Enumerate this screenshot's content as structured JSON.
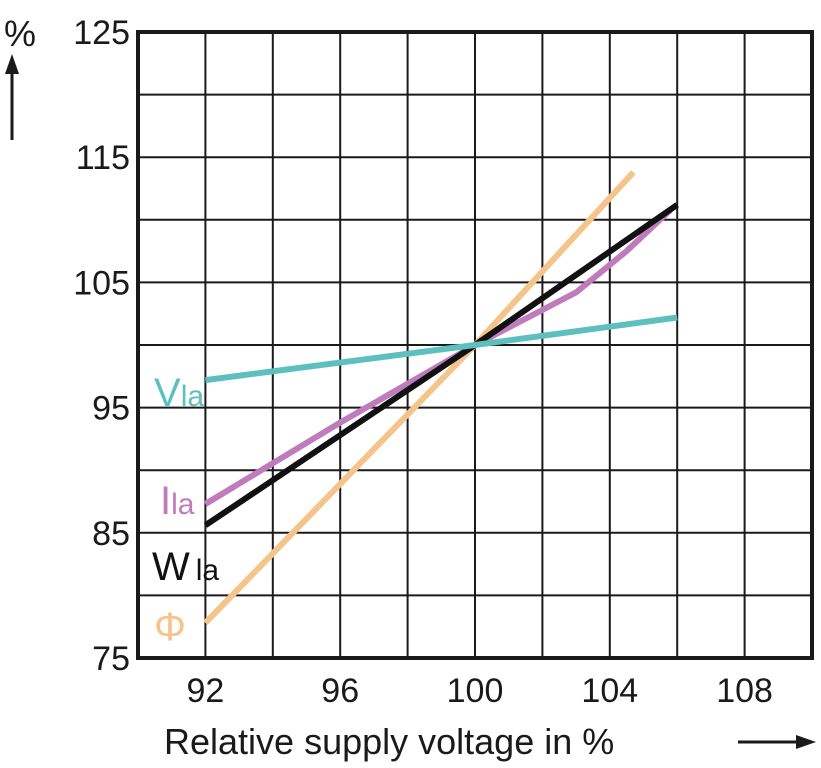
{
  "chart_data": {
    "type": "line",
    "xlabel": "Relative supply voltage in %",
    "ylabel": "%",
    "xlim": [
      90,
      110
    ],
    "ylim": [
      75,
      125
    ],
    "x_ticks": [
      92,
      96,
      100,
      104,
      108
    ],
    "y_ticks": [
      75,
      85,
      95,
      105,
      115,
      125
    ],
    "grid": true,
    "series": [
      {
        "name": "Φ",
        "label_main": "Φ",
        "label_sub": "",
        "color": "#f5c48a",
        "points": [
          [
            92,
            77.8
          ],
          [
            100,
            100
          ],
          [
            104.7,
            113.8
          ]
        ]
      },
      {
        "name": "Ila",
        "label_main": "I",
        "label_sub": "la",
        "color": "#c07bbd",
        "points": [
          [
            92,
            87.3
          ],
          [
            96,
            93.8
          ],
          [
            100,
            100
          ],
          [
            103,
            104.2
          ],
          [
            104.5,
            107.5
          ],
          [
            105.8,
            110.8
          ]
        ]
      },
      {
        "name": "Wla",
        "label_main": "W",
        "label_sub": "la",
        "color": "#111111",
        "points": [
          [
            92,
            85.6
          ],
          [
            100,
            100
          ],
          [
            106,
            111.2
          ]
        ]
      },
      {
        "name": "Vla",
        "label_main": "V",
        "label_sub": "la",
        "color": "#5ebfbf",
        "points": [
          [
            92,
            97.2
          ],
          [
            100,
            100
          ],
          [
            106,
            102.2
          ]
        ]
      }
    ]
  }
}
